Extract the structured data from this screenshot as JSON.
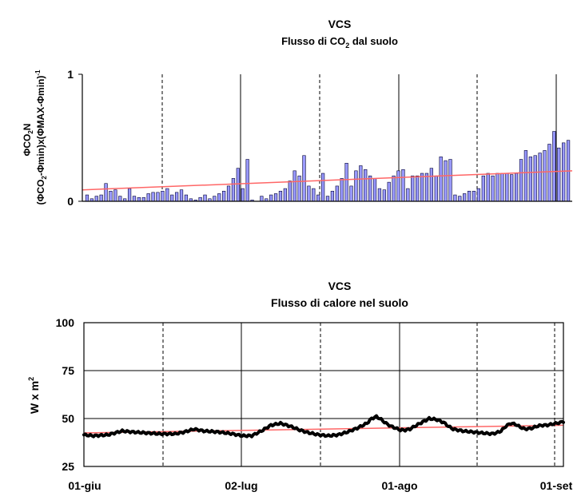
{
  "chart_data": [
    {
      "type": "bar",
      "title": "VCS",
      "subtitle_parts": {
        "a": "Flusso di CO",
        "sub": "2",
        "b": " dal suolo"
      },
      "ylabel_line1": {
        "a": "ΦCO",
        "sub": "2",
        "b": "N"
      },
      "ylabel_line2": {
        "a": "(ΦCO",
        "sub": "2",
        "b": "-Φmin)x(ΦMAX-Φmin)",
        "sup": "-1"
      },
      "ylim": [
        0,
        1
      ],
      "yticks": [
        "0",
        "1"
      ],
      "grid": "vertical dashed and solid lines",
      "bar_color": "#9999ff",
      "trend_color": "#ff6666",
      "trend": [
        0.09,
        0.24
      ],
      "values": [
        0.05,
        0.02,
        0.04,
        0.05,
        0.14,
        0.08,
        0.09,
        0.04,
        0.02,
        0.1,
        0.04,
        0.03,
        0.03,
        0.06,
        0.07,
        0.07,
        0.08,
        0.1,
        0.05,
        0.07,
        0.09,
        0.05,
        0.02,
        0.01,
        0.03,
        0.05,
        0.02,
        0.04,
        0.06,
        0.08,
        0.12,
        0.18,
        0.26,
        0.1,
        0.33,
        0.01,
        0.0,
        0.04,
        0.02,
        0.05,
        0.06,
        0.08,
        0.1,
        0.16,
        0.24,
        0.2,
        0.36,
        0.12,
        0.1,
        0.05,
        0.22,
        0.04,
        0.08,
        0.12,
        0.18,
        0.3,
        0.12,
        0.24,
        0.28,
        0.25,
        0.2,
        0.18,
        0.1,
        0.09,
        0.15,
        0.2,
        0.24,
        0.25,
        0.1,
        0.2,
        0.2,
        0.22,
        0.22,
        0.26,
        0.2,
        0.35,
        0.32,
        0.33,
        0.05,
        0.04,
        0.06,
        0.08,
        0.08,
        0.1,
        0.2,
        0.22,
        0.2,
        0.22,
        0.22,
        0.22,
        0.21,
        0.22,
        0.33,
        0.4,
        0.35,
        0.36,
        0.38,
        0.4,
        0.45,
        0.55,
        0.42,
        0.46,
        0.48
      ]
    },
    {
      "type": "line",
      "title": "VCS",
      "subtitle": "Flusso di calore nel suolo",
      "ylabel": {
        "a": "W x m",
        "sup": "2"
      },
      "ylim": [
        25,
        100
      ],
      "yticks": [
        "100",
        "75",
        "50",
        "25"
      ],
      "xticks": [
        "01-giu",
        "02-lug",
        "01-ago",
        "01-set"
      ],
      "grid": "horizontal solid, vertical dashed and solid lines",
      "series_color": "#000000",
      "trend_color": "#ff6666",
      "trend": [
        42.5,
        46.5
      ],
      "keypoints": [
        [
          0,
          41.5
        ],
        [
          0.02,
          41
        ],
        [
          0.05,
          41.5
        ],
        [
          0.08,
          43.5
        ],
        [
          0.1,
          43
        ],
        [
          0.13,
          42.5
        ],
        [
          0.16,
          42
        ],
        [
          0.19,
          42
        ],
        [
          0.21,
          43
        ],
        [
          0.23,
          44.5
        ],
        [
          0.25,
          43.5
        ],
        [
          0.28,
          43
        ],
        [
          0.31,
          42
        ],
        [
          0.33,
          41
        ],
        [
          0.35,
          41
        ],
        [
          0.37,
          43.5
        ],
        [
          0.39,
          46.5
        ],
        [
          0.41,
          47.5
        ],
        [
          0.43,
          46
        ],
        [
          0.45,
          44
        ],
        [
          0.47,
          42.5
        ],
        [
          0.49,
          41.5
        ],
        [
          0.51,
          41
        ],
        [
          0.53,
          41.5
        ],
        [
          0.55,
          43
        ],
        [
          0.57,
          45
        ],
        [
          0.59,
          47.5
        ],
        [
          0.6,
          50
        ],
        [
          0.61,
          51
        ],
        [
          0.62,
          49.5
        ],
        [
          0.63,
          47.5
        ],
        [
          0.64,
          46
        ],
        [
          0.65,
          45
        ],
        [
          0.66,
          44
        ],
        [
          0.67,
          44
        ],
        [
          0.68,
          44.5
        ],
        [
          0.69,
          46
        ],
        [
          0.705,
          48
        ],
        [
          0.72,
          50
        ],
        [
          0.735,
          49.5
        ],
        [
          0.75,
          48
        ],
        [
          0.76,
          46
        ],
        [
          0.77,
          44.5
        ],
        [
          0.79,
          43.5
        ],
        [
          0.81,
          43
        ],
        [
          0.83,
          42.5
        ],
        [
          0.85,
          42
        ],
        [
          0.86,
          42.5
        ],
        [
          0.87,
          43.5
        ],
        [
          0.88,
          46
        ],
        [
          0.89,
          47.5
        ],
        [
          0.9,
          47
        ],
        [
          0.91,
          45.5
        ],
        [
          0.92,
          44.5
        ],
        [
          0.935,
          45
        ],
        [
          0.945,
          46
        ],
        [
          0.955,
          46.5
        ],
        [
          0.965,
          46.5
        ],
        [
          0.975,
          47
        ],
        [
          0.985,
          47.5
        ],
        [
          0.995,
          48
        ],
        [
          1.0,
          48.5
        ]
      ]
    }
  ]
}
